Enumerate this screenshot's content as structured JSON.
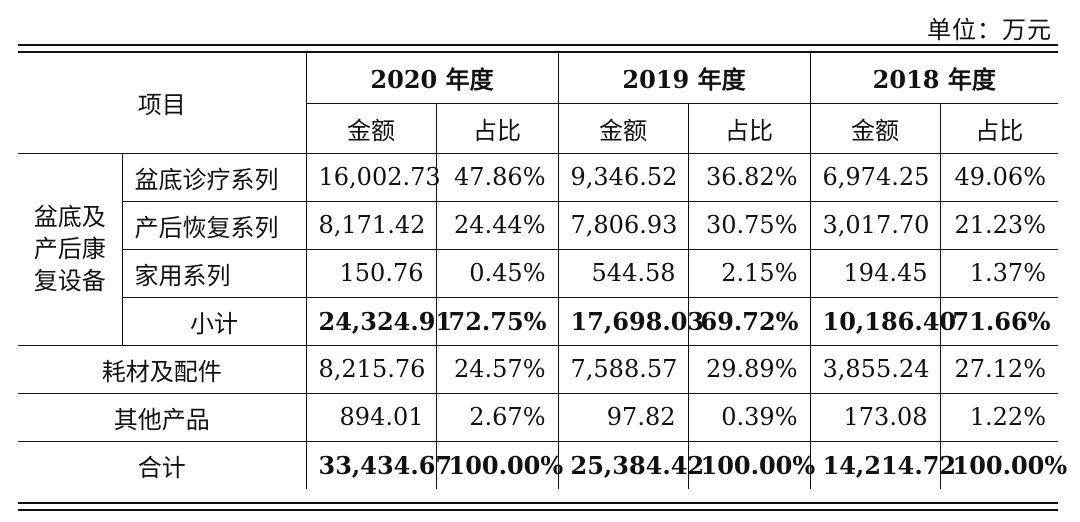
{
  "unit_label": "单位：万元",
  "header": {
    "item": "项目",
    "years": [
      "2020 年度",
      "2019 年度",
      "2018 年度"
    ],
    "amount": "金额",
    "ratio": "占比"
  },
  "group_label_lines": [
    "盆底及",
    "产后康",
    "复设备"
  ],
  "group_rows": [
    {
      "name": "盆底诊疗系列",
      "values": [
        "16,002.73",
        "47.86%",
        "9,346.52",
        "36.82%",
        "6,974.25",
        "49.06%"
      ]
    },
    {
      "name": "产后恢复系列",
      "values": [
        "8,171.42",
        "24.44%",
        "7,806.93",
        "30.75%",
        "3,017.70",
        "21.23%"
      ]
    },
    {
      "name": "家用系列",
      "values": [
        "150.76",
        "0.45%",
        "544.58",
        "2.15%",
        "194.45",
        "1.37%"
      ]
    },
    {
      "name": "小计",
      "values": [
        "24,324.91",
        "72.75%",
        "17,698.03",
        "69.72%",
        "10,186.40",
        "71.66%"
      ]
    }
  ],
  "other_rows": [
    {
      "name": "耗材及配件",
      "values": [
        "8,215.76",
        "24.57%",
        "7,588.57",
        "29.89%",
        "3,855.24",
        "27.12%"
      ]
    },
    {
      "name": "其他产品",
      "values": [
        "894.01",
        "2.67%",
        "97.82",
        "0.39%",
        "173.08",
        "1.22%"
      ]
    },
    {
      "name": "合计",
      "values": [
        "33,434.67",
        "100.00%",
        "25,384.42",
        "100.00%",
        "14,214.72",
        "100.00%"
      ]
    }
  ]
}
